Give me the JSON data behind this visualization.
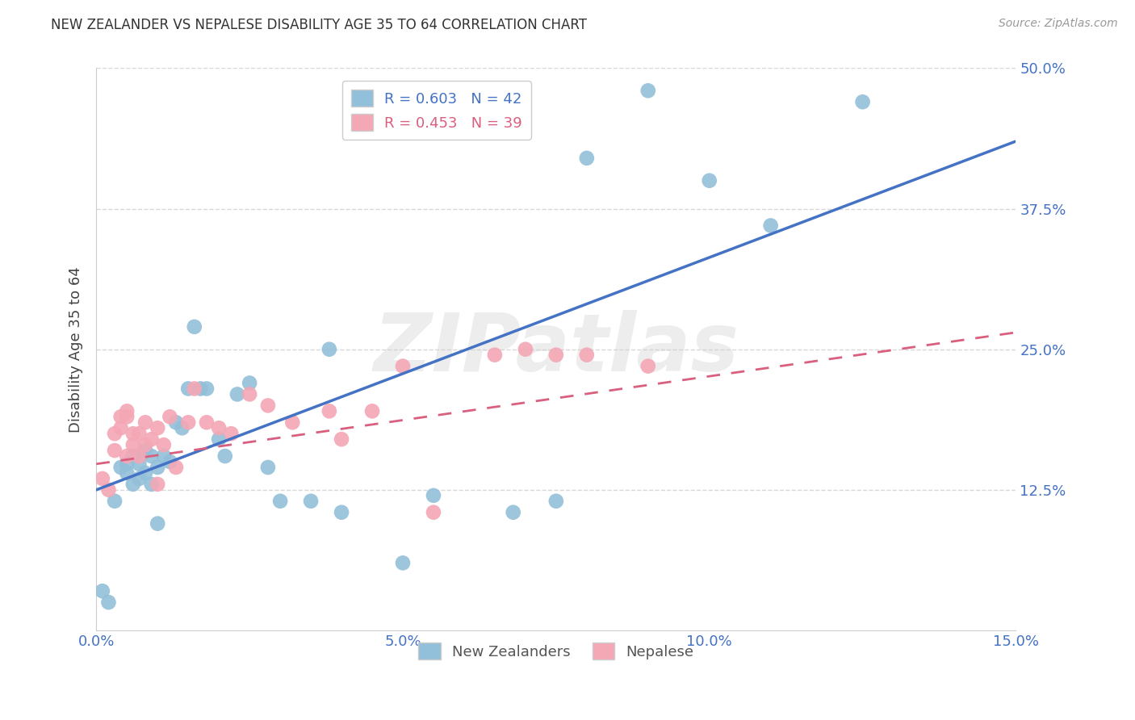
{
  "title": "NEW ZEALANDER VS NEPALESE DISABILITY AGE 35 TO 64 CORRELATION CHART",
  "source": "Source: ZipAtlas.com",
  "ylabel": "Disability Age 35 to 64",
  "xlim": [
    0.0,
    0.15
  ],
  "ylim": [
    0.0,
    0.5
  ],
  "xticks": [
    0.0,
    0.05,
    0.1,
    0.15
  ],
  "xticklabels": [
    "0.0%",
    "5.0%",
    "10.0%",
    "15.0%"
  ],
  "yticks": [
    0.0,
    0.125,
    0.25,
    0.375,
    0.5
  ],
  "right_yticklabels": [
    "",
    "12.5%",
    "25.0%",
    "37.5%",
    "50.0%"
  ],
  "nz_R": 0.603,
  "nz_N": 42,
  "np_R": 0.453,
  "np_N": 39,
  "nz_color": "#92BFD9",
  "np_color": "#F4A7B5",
  "nz_line_color": "#4472C4",
  "np_line_color": "#D95F7F",
  "watermark": "ZIPatlas",
  "background_color": "#FFFFFF",
  "grid_color": "#D8D8D8",
  "tick_color": "#4472C4",
  "legend_text_color_nz": "#4472C4",
  "legend_text_color_np": "#D95F7F",
  "nz_scatter_x": [
    0.001,
    0.002,
    0.003,
    0.004,
    0.005,
    0.005,
    0.006,
    0.006,
    0.007,
    0.007,
    0.008,
    0.008,
    0.009,
    0.009,
    0.01,
    0.01,
    0.011,
    0.012,
    0.013,
    0.014,
    0.015,
    0.016,
    0.017,
    0.018,
    0.02,
    0.021,
    0.023,
    0.025,
    0.028,
    0.03,
    0.035,
    0.038,
    0.04,
    0.05,
    0.055,
    0.068,
    0.075,
    0.08,
    0.09,
    0.1,
    0.11,
    0.125
  ],
  "nz_scatter_y": [
    0.035,
    0.025,
    0.115,
    0.145,
    0.148,
    0.14,
    0.13,
    0.155,
    0.135,
    0.148,
    0.14,
    0.16,
    0.155,
    0.13,
    0.095,
    0.145,
    0.155,
    0.15,
    0.185,
    0.18,
    0.215,
    0.27,
    0.215,
    0.215,
    0.17,
    0.155,
    0.21,
    0.22,
    0.145,
    0.115,
    0.115,
    0.25,
    0.105,
    0.06,
    0.12,
    0.105,
    0.115,
    0.42,
    0.48,
    0.4,
    0.36,
    0.47
  ],
  "np_scatter_x": [
    0.001,
    0.002,
    0.003,
    0.003,
    0.004,
    0.004,
    0.005,
    0.005,
    0.005,
    0.006,
    0.006,
    0.007,
    0.007,
    0.008,
    0.008,
    0.009,
    0.01,
    0.01,
    0.011,
    0.012,
    0.013,
    0.015,
    0.016,
    0.018,
    0.02,
    0.022,
    0.025,
    0.028,
    0.032,
    0.038,
    0.04,
    0.045,
    0.05,
    0.055,
    0.065,
    0.07,
    0.075,
    0.08,
    0.09
  ],
  "np_scatter_y": [
    0.135,
    0.125,
    0.16,
    0.175,
    0.18,
    0.19,
    0.19,
    0.195,
    0.155,
    0.165,
    0.175,
    0.155,
    0.175,
    0.165,
    0.185,
    0.17,
    0.18,
    0.13,
    0.165,
    0.19,
    0.145,
    0.185,
    0.215,
    0.185,
    0.18,
    0.175,
    0.21,
    0.2,
    0.185,
    0.195,
    0.17,
    0.195,
    0.235,
    0.105,
    0.245,
    0.25,
    0.245,
    0.245,
    0.235
  ],
  "nz_trend_x": [
    0.0,
    0.15
  ],
  "nz_trend_y": [
    0.125,
    0.435
  ],
  "np_trend_x": [
    0.0,
    0.15
  ],
  "np_trend_y": [
    0.148,
    0.265
  ]
}
